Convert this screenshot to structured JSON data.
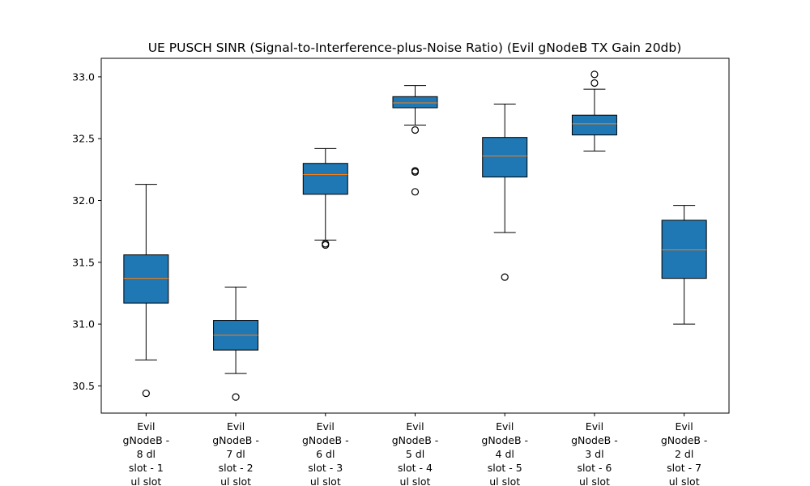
{
  "chart_data": {
    "type": "box",
    "title": "UE PUSCH SINR (Signal-to-Interference-plus-Noise Ratio) (Evil gNodeB TX Gain 20db)",
    "xlabel": "",
    "ylabel": "",
    "ylim": [
      30.28,
      33.15
    ],
    "yticks": [
      "30.5",
      "31.0",
      "31.5",
      "32.0",
      "32.5",
      "33.0"
    ],
    "grid": false,
    "box_color": "#1f77b4",
    "median_color": "#ff7f0e",
    "categories": [
      [
        "Evil",
        "gNodeB -",
        "8 dl",
        "slot - 1",
        "ul slot"
      ],
      [
        "Evil",
        "gNodeB -",
        "7 dl",
        "slot - 2",
        "ul slot"
      ],
      [
        "Evil",
        "gNodeB -",
        "6 dl",
        "slot - 3",
        "ul slot"
      ],
      [
        "Evil",
        "gNodeB -",
        "5 dl",
        "slot - 4",
        "ul slot"
      ],
      [
        "Evil",
        "gNodeB -",
        "4 dl",
        "slot - 5",
        "ul slot"
      ],
      [
        "Evil",
        "gNodeB -",
        "3 dl",
        "slot - 6",
        "ul slot"
      ],
      [
        "Evil",
        "gNodeB -",
        "2 dl",
        "slot - 7",
        "ul slot"
      ]
    ],
    "boxes": [
      {
        "whisker_low": 30.71,
        "q1": 31.17,
        "median": 31.37,
        "q3": 31.56,
        "whisker_high": 32.13,
        "outliers": [
          30.44
        ]
      },
      {
        "whisker_low": 30.6,
        "q1": 30.79,
        "median": 30.91,
        "q3": 31.03,
        "whisker_high": 31.3,
        "outliers": [
          30.41
        ]
      },
      {
        "whisker_low": 31.68,
        "q1": 32.05,
        "median": 32.21,
        "q3": 32.3,
        "whisker_high": 32.42,
        "outliers": [
          31.64,
          31.65
        ]
      },
      {
        "whisker_low": 32.61,
        "q1": 32.75,
        "median": 32.79,
        "q3": 32.84,
        "whisker_high": 32.93,
        "outliers": [
          32.57,
          32.24,
          32.23,
          32.07
        ]
      },
      {
        "whisker_low": 31.74,
        "q1": 32.19,
        "median": 32.36,
        "q3": 32.51,
        "whisker_high": 32.78,
        "outliers": [
          31.38
        ]
      },
      {
        "whisker_low": 32.4,
        "q1": 32.53,
        "median": 32.62,
        "q3": 32.69,
        "whisker_high": 32.9,
        "outliers": [
          33.02,
          32.95
        ]
      },
      {
        "whisker_low": 31.0,
        "q1": 31.37,
        "median": 31.6,
        "q3": 31.84,
        "whisker_high": 31.96,
        "outliers": []
      }
    ]
  }
}
